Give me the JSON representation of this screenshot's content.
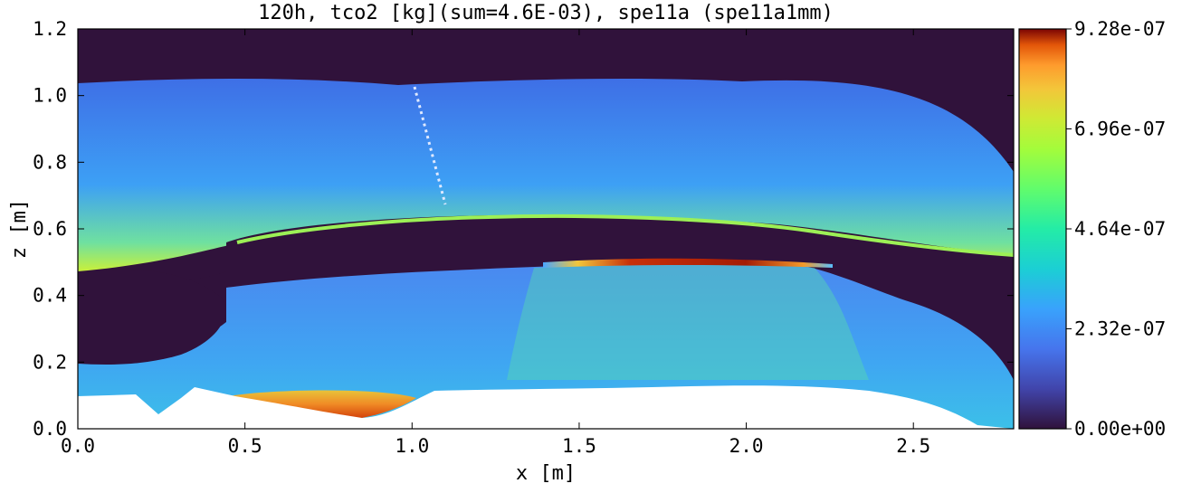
{
  "chart_data": {
    "type": "heatmap",
    "title": "120h, tco2 [kg](sum=4.6E-03), spe11a (spe11a1mm)",
    "xlabel": "x [m]",
    "ylabel": "z [m]",
    "xlim": [
      0.0,
      2.8
    ],
    "ylim": [
      0.0,
      1.2
    ],
    "xticks": [
      "0.0",
      "0.5",
      "1.0",
      "1.5",
      "2.0",
      "2.5"
    ],
    "yticks": [
      "0.0",
      "0.2",
      "0.4",
      "0.6",
      "0.8",
      "1.0",
      "1.2"
    ],
    "colorbar": {
      "min": 0.0,
      "max": 9.28e-07,
      "ticks": [
        "0.00e+00",
        "2.32e-07",
        "4.64e-07",
        "6.96e-07",
        "9.28e-07"
      ],
      "colormap": "turbo"
    },
    "regions": [
      {
        "name": "top dark band",
        "x": [
          0.0,
          2.8
        ],
        "z": [
          1.03,
          1.2
        ],
        "value": 0.0
      },
      {
        "name": "upper plume",
        "x": [
          0.0,
          2.8
        ],
        "z": [
          0.62,
          1.03
        ],
        "value": 2.3e-07
      },
      {
        "name": "plume front",
        "x": [
          0.4,
          2.8
        ],
        "z": [
          0.58,
          0.65
        ],
        "value": 5e-07
      },
      {
        "name": "middle dark seal",
        "x": [
          0.45,
          2.8
        ],
        "z": [
          0.42,
          0.62
        ],
        "value": 0.0
      },
      {
        "name": "hot layer",
        "x": [
          1.45,
          2.3
        ],
        "z": [
          0.5,
          0.52
        ],
        "value": 9e-07
      },
      {
        "name": "left dark pocket",
        "x": [
          0.0,
          0.45
        ],
        "z": [
          0.22,
          0.47
        ],
        "value": 0.0
      },
      {
        "name": "lower fingers",
        "x": [
          1.3,
          2.3
        ],
        "z": [
          0.15,
          0.5
        ],
        "value": 3.8e-07
      },
      {
        "name": "bottom hot pool",
        "x": [
          0.45,
          1.05
        ],
        "z": [
          0.03,
          0.12
        ],
        "value": 7.5e-07
      }
    ]
  }
}
